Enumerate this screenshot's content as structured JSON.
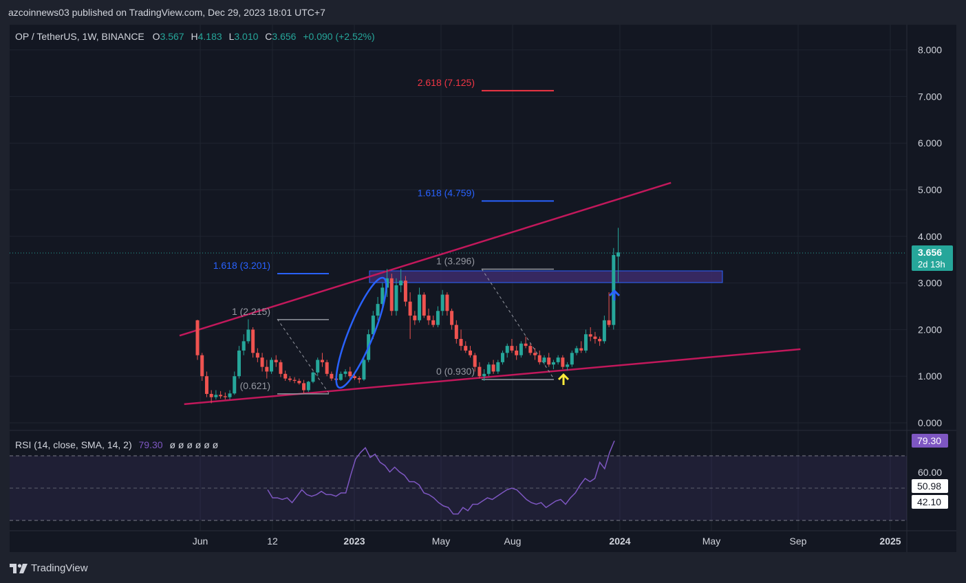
{
  "header": {
    "published": "azcoinnews03 published on TradingView.com, Dec 29, 2023 18:01 UTC+7"
  },
  "legend": {
    "symbol": "OP / TetherUS, 1W, BINANCE",
    "o_label": "O",
    "o_value": "3.567",
    "h_label": "H",
    "h_value": "4.183",
    "l_label": "L",
    "l_value": "3.010",
    "c_label": "C",
    "c_value": "3.656",
    "change": "+0.090 (+2.52%)"
  },
  "price_badge": {
    "price": "3.656",
    "countdown": "2d 13h"
  },
  "rsi": {
    "label": "RSI (14, close, SMA, 14, 2)",
    "value": "79.30",
    "placeholders": "ø ø ø ø ø ø",
    "badges": [
      "79.30",
      "50.98",
      "42.10"
    ],
    "axis_labels": [
      "60.00"
    ]
  },
  "footer": {
    "brand": "TradingView"
  },
  "colors": {
    "background": "#1e222d",
    "bull": "#26a69a",
    "bear": "#ef5350",
    "trendline": "#c2185b",
    "fib_blue": "#2962ff",
    "fib_red": "#f23645",
    "rsi_line": "#7e57c2",
    "rsi_band": "#7e57c2",
    "zone_fill": "#3d2b6b",
    "zone_border": "#2962ff"
  },
  "chart_data": {
    "type": "candlestick",
    "price_axis": [
      "8.000",
      "7.000",
      "6.000",
      "5.000",
      "4.000",
      "3.000",
      "2.000",
      "1.000",
      "0.000"
    ],
    "ylim": [
      0,
      8.4
    ],
    "time_axis": [
      "Jun",
      "12",
      "2023",
      "May",
      "Aug",
      "2024",
      "May",
      "Sep",
      "2025"
    ],
    "candles": [
      [
        2.2,
        2.21,
        1.35,
        1.45
      ],
      [
        1.45,
        1.5,
        0.9,
        1.0
      ],
      [
        1.0,
        1.1,
        0.55,
        0.62
      ],
      [
        0.62,
        0.7,
        0.42,
        0.55
      ],
      [
        0.55,
        0.7,
        0.5,
        0.6
      ],
      [
        0.6,
        0.68,
        0.52,
        0.57
      ],
      [
        0.57,
        0.65,
        0.5,
        0.55
      ],
      [
        0.55,
        0.7,
        0.5,
        0.63
      ],
      [
        0.63,
        1.1,
        0.6,
        1.0
      ],
      [
        1.0,
        1.65,
        0.95,
        1.55
      ],
      [
        1.55,
        1.9,
        1.45,
        1.75
      ],
      [
        1.75,
        2.22,
        1.7,
        2.0
      ],
      [
        2.0,
        2.05,
        1.4,
        1.5
      ],
      [
        1.5,
        1.6,
        1.3,
        1.4
      ],
      [
        1.4,
        1.5,
        1.1,
        1.2
      ],
      [
        1.2,
        1.35,
        0.95,
        1.1
      ],
      [
        1.1,
        1.4,
        1.05,
        1.35
      ],
      [
        1.35,
        1.45,
        1.2,
        1.3
      ],
      [
        1.3,
        1.35,
        0.98,
        1.05
      ],
      [
        1.05,
        1.12,
        0.9,
        0.95
      ],
      [
        0.95,
        1.0,
        0.88,
        0.92
      ],
      [
        0.92,
        0.98,
        0.85,
        0.9
      ],
      [
        0.9,
        0.95,
        0.82,
        0.85
      ],
      [
        0.85,
        0.92,
        0.62,
        0.7
      ],
      [
        0.7,
        0.9,
        0.66,
        0.88
      ],
      [
        0.88,
        1.1,
        0.85,
        1.08
      ],
      [
        1.08,
        1.4,
        1.0,
        1.35
      ],
      [
        1.35,
        1.5,
        1.2,
        1.3
      ],
      [
        1.3,
        1.35,
        1.0,
        1.05
      ],
      [
        1.05,
        1.1,
        0.9,
        0.95
      ],
      [
        0.95,
        1.05,
        0.88,
        0.92
      ],
      [
        0.92,
        1.1,
        0.9,
        1.05
      ],
      [
        1.05,
        1.15,
        0.98,
        1.1
      ],
      [
        1.1,
        1.2,
        0.95,
        1.0
      ],
      [
        1.0,
        1.05,
        0.92,
        0.96
      ],
      [
        0.96,
        1.0,
        0.85,
        0.93
      ],
      [
        0.93,
        1.4,
        0.9,
        1.35
      ],
      [
        1.35,
        2.0,
        1.3,
        1.9
      ],
      [
        1.9,
        2.4,
        1.8,
        2.3
      ],
      [
        2.3,
        2.7,
        2.2,
        2.55
      ],
      [
        2.55,
        3.0,
        2.4,
        2.9
      ],
      [
        2.9,
        3.3,
        2.7,
        3.1
      ],
      [
        3.1,
        3.2,
        2.3,
        2.4
      ],
      [
        2.4,
        3.1,
        2.3,
        2.95
      ],
      [
        2.95,
        3.3,
        2.8,
        3.05
      ],
      [
        3.05,
        3.15,
        2.5,
        2.6
      ],
      [
        2.6,
        2.8,
        1.8,
        2.3
      ],
      [
        2.3,
        2.4,
        2.1,
        2.2
      ],
      [
        2.2,
        2.9,
        2.15,
        2.75
      ],
      [
        2.75,
        2.8,
        2.25,
        2.3
      ],
      [
        2.3,
        2.45,
        2.1,
        2.2
      ],
      [
        2.2,
        2.3,
        2.05,
        2.1
      ],
      [
        2.1,
        2.5,
        2.05,
        2.4
      ],
      [
        2.4,
        2.85,
        2.3,
        2.75
      ],
      [
        2.75,
        2.8,
        2.3,
        2.4
      ],
      [
        2.4,
        2.45,
        2.0,
        2.1
      ],
      [
        2.1,
        2.2,
        1.7,
        1.8
      ],
      [
        1.8,
        2.0,
        1.55,
        1.65
      ],
      [
        1.65,
        1.75,
        1.5,
        1.55
      ],
      [
        1.55,
        1.65,
        1.4,
        1.45
      ],
      [
        1.45,
        1.5,
        1.1,
        1.2
      ],
      [
        1.2,
        1.3,
        0.95,
        1.0
      ],
      [
        1.0,
        1.15,
        0.9,
        1.05
      ],
      [
        1.05,
        1.3,
        1.0,
        1.25
      ],
      [
        1.25,
        1.35,
        1.05,
        1.1
      ],
      [
        1.1,
        1.35,
        1.05,
        1.3
      ],
      [
        1.3,
        1.55,
        1.25,
        1.5
      ],
      [
        1.5,
        1.7,
        1.4,
        1.65
      ],
      [
        1.65,
        1.8,
        1.5,
        1.55
      ],
      [
        1.55,
        1.65,
        1.35,
        1.45
      ],
      [
        1.45,
        1.75,
        1.4,
        1.7
      ],
      [
        1.7,
        1.85,
        1.6,
        1.65
      ],
      [
        1.65,
        1.7,
        1.45,
        1.5
      ],
      [
        1.5,
        1.6,
        1.35,
        1.45
      ],
      [
        1.45,
        1.55,
        1.25,
        1.3
      ],
      [
        1.3,
        1.45,
        1.25,
        1.4
      ],
      [
        1.4,
        1.5,
        1.2,
        1.25
      ],
      [
        1.25,
        1.35,
        1.15,
        1.3
      ],
      [
        1.3,
        1.45,
        1.25,
        1.4
      ],
      [
        1.4,
        1.45,
        1.15,
        1.2
      ],
      [
        1.2,
        1.3,
        1.12,
        1.25
      ],
      [
        1.25,
        1.55,
        1.2,
        1.5
      ],
      [
        1.5,
        1.65,
        1.45,
        1.6
      ],
      [
        1.6,
        1.75,
        1.5,
        1.55
      ],
      [
        1.55,
        2.0,
        1.5,
        1.9
      ],
      [
        1.9,
        2.05,
        1.75,
        1.85
      ],
      [
        1.85,
        1.95,
        1.7,
        1.8
      ],
      [
        1.8,
        1.85,
        1.65,
        1.75
      ],
      [
        1.75,
        2.3,
        1.7,
        2.2
      ],
      [
        2.2,
        2.8,
        2.05,
        2.1
      ],
      [
        2.1,
        3.75,
        2.0,
        3.6
      ],
      [
        3.567,
        4.183,
        3.01,
        3.656
      ]
    ],
    "rsi_series": [
      49,
      44,
      44,
      43,
      44,
      41,
      45,
      49,
      46,
      45,
      46,
      48,
      46,
      46,
      45,
      47,
      47,
      58,
      68,
      72,
      75,
      69,
      71,
      66,
      64,
      60,
      63,
      60,
      58,
      54,
      54,
      52,
      47,
      46,
      44,
      41,
      39,
      38,
      34,
      34,
      38,
      36,
      40,
      40,
      42,
      44,
      43,
      45,
      47,
      49,
      50,
      49,
      46,
      43,
      41,
      40,
      41,
      38,
      40,
      42,
      43,
      40,
      44,
      47,
      52,
      56,
      54,
      56,
      66,
      62,
      72,
      79.3
    ],
    "rsi_ylim": [
      30,
      82
    ],
    "rsi_bands": [
      70,
      50,
      30
    ],
    "trendlines": [
      {
        "name": "upper-trendline",
        "from": [
          0,
          1.87
        ],
        "to": [
          60,
          5.15
        ]
      },
      {
        "name": "lower-trendline",
        "from": [
          1,
          0.4
        ],
        "to": [
          88,
          1.58
        ]
      }
    ],
    "fib_levels": [
      {
        "label": "2.618 (7.125)",
        "price": 7.125,
        "x1": 40,
        "x2": 48,
        "color": "fib_red"
      },
      {
        "label": "1.618 (4.759)",
        "price": 4.759,
        "x1": 40,
        "x2": 48,
        "color": "fib_blue"
      },
      {
        "label": "1.618 (3.201)",
        "price": 3.201,
        "x1": 7,
        "x2": 12,
        "color": "fib_blue"
      },
      {
        "label": "1 (3.296)",
        "price": 3.296,
        "x1": 40,
        "x2": 48,
        "color": "grey"
      },
      {
        "label": "1 (2.215)",
        "price": 2.215,
        "x1": 7,
        "x2": 12,
        "color": "grey"
      },
      {
        "label": "0 (0.930)",
        "price": 0.93,
        "x1": 40,
        "x2": 48,
        "color": "grey"
      },
      {
        "label": "(0.621)",
        "price": 0.621,
        "x1": 7,
        "x2": 12,
        "color": "grey"
      }
    ],
    "resistance_zone": {
      "x_from": 16,
      "x_to": 67,
      "y_top": 3.3,
      "y_bottom": 3.0
    }
  }
}
